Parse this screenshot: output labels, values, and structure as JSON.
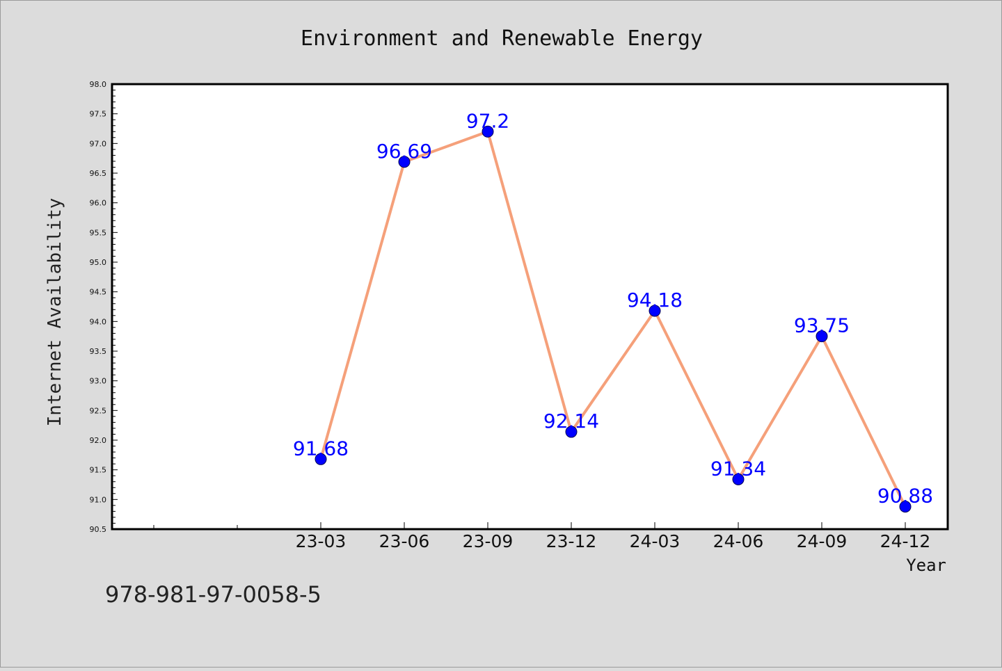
{
  "chart_data": {
    "type": "line",
    "title": "Environment and Renewable Energy",
    "xlabel": "Year",
    "ylabel": "Internet Availability",
    "categories": [
      "23-03",
      "23-06",
      "23-09",
      "23-12",
      "24-03",
      "24-06",
      "24-09",
      "24-12"
    ],
    "series": [
      {
        "values": [
          91.68,
          96.69,
          97.2,
          92.14,
          94.18,
          91.34,
          93.75,
          90.88
        ],
        "labels": [
          "91.68",
          "96.69",
          "97.2",
          "92.14",
          "94.18",
          "91.34",
          "93.75",
          "90.88"
        ]
      }
    ],
    "ylim": [
      90.5,
      98.0
    ],
    "yticks": [
      "90.5",
      "91.0",
      "91.5",
      "92.0",
      "92.5",
      "93.0",
      "93.5",
      "94.0",
      "94.5",
      "95.0",
      "95.5",
      "96.0",
      "96.5",
      "97.0",
      "97.5",
      "98.0"
    ],
    "grid": false,
    "legend": "none",
    "colors": {
      "line": "#f5a07a",
      "marker": "#0000ff",
      "data_label": "#0000ff",
      "background": "#dcdcdc",
      "plot_area": "#ffffff"
    }
  },
  "footer": {
    "isbn": "978-981-97-0058-5"
  }
}
